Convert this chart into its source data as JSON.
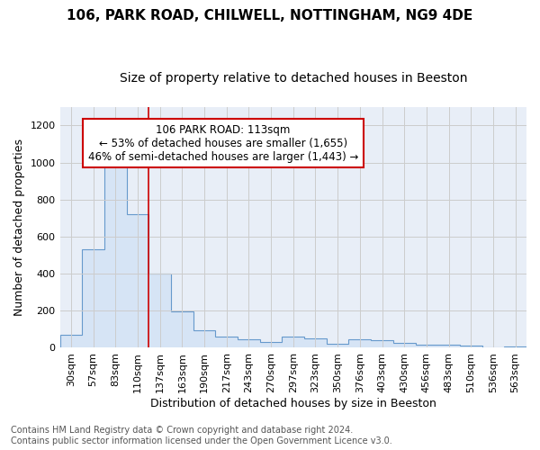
{
  "title1": "106, PARK ROAD, CHILWELL, NOTTINGHAM, NG9 4DE",
  "title2": "Size of property relative to detached houses in Beeston",
  "xlabel": "Distribution of detached houses by size in Beeston",
  "ylabel": "Number of detached properties",
  "bar_fill_color": "#d6e4f5",
  "bar_edge_color": "#6699cc",
  "annotation_box_text": "106 PARK ROAD: 113sqm\n← 53% of detached houses are smaller (1,655)\n46% of semi-detached houses are larger (1,443) →",
  "annotation_box_edge": "#cc0000",
  "annotation_box_face": "white",
  "categories": [
    "30sqm",
    "57sqm",
    "83sqm",
    "110sqm",
    "137sqm",
    "163sqm",
    "190sqm",
    "217sqm",
    "243sqm",
    "270sqm",
    "297sqm",
    "323sqm",
    "350sqm",
    "376sqm",
    "403sqm",
    "430sqm",
    "456sqm",
    "483sqm",
    "510sqm",
    "536sqm",
    "563sqm"
  ],
  "values": [
    70,
    530,
    990,
    720,
    400,
    195,
    95,
    60,
    45,
    30,
    60,
    50,
    20,
    45,
    40,
    25,
    15,
    15,
    10,
    0
  ],
  "highlight_index": 3,
  "highlight_line_color": "#cc0000",
  "ylim": [
    0,
    1300
  ],
  "yticks": [
    0,
    200,
    400,
    600,
    800,
    1000,
    1200
  ],
  "grid_color": "#cccccc",
  "bg_color": "#e8eef7",
  "footer_text": "Contains HM Land Registry data © Crown copyright and database right 2024.\nContains public sector information licensed under the Open Government Licence v3.0.",
  "title1_fontsize": 11,
  "title2_fontsize": 10,
  "xlabel_fontsize": 9,
  "ylabel_fontsize": 9,
  "tick_fontsize": 8,
  "annotation_fontsize": 8.5,
  "footer_fontsize": 7
}
